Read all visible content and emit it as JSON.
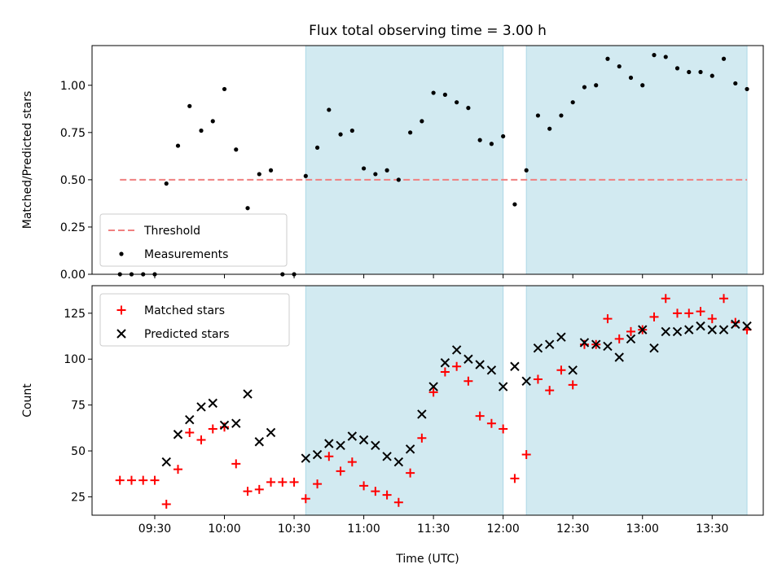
{
  "chart_data": [
    {
      "type": "scatter",
      "title": "Flux total observing time = 3.00 h",
      "xlabel": "",
      "ylabel": "Matched/Predicted stars",
      "xlim": [
        "09:03",
        "13:52"
      ],
      "ylim": [
        0,
        1.21
      ],
      "x_ticks": [
        "09:30",
        "10:00",
        "10:30",
        "11:00",
        "11:30",
        "12:00",
        "12:30",
        "13:00",
        "13:30"
      ],
      "x_tick_labels_shown": false,
      "y_ticks": [
        "0.00",
        "0.25",
        "0.50",
        "0.75",
        "1.00"
      ],
      "shaded_intervals": [
        [
          "10:35",
          "12:00"
        ],
        [
          "12:10",
          "13:45"
        ]
      ],
      "shade_color": "#add8e6",
      "legend": {
        "location": "lower-left",
        "entries": [
          {
            "label": "Threshold",
            "style": "dashed-line",
            "color": "#f08080"
          },
          {
            "label": "Measurements",
            "style": "dot",
            "color": "#000000"
          }
        ]
      },
      "series": [
        {
          "name": "Threshold",
          "kind": "hline",
          "y": 0.5,
          "x_range": [
            "09:15",
            "13:45"
          ],
          "color": "#f08080"
        },
        {
          "name": "Measurements",
          "kind": "points",
          "color": "#000000",
          "points": [
            [
              "09:15",
              0.0
            ],
            [
              "09:20",
              0.0
            ],
            [
              "09:25",
              0.0
            ],
            [
              "09:30",
              0.0
            ],
            [
              "09:35",
              0.48
            ],
            [
              "09:40",
              0.68
            ],
            [
              "09:45",
              0.89
            ],
            [
              "09:50",
              0.76
            ],
            [
              "09:55",
              0.81
            ],
            [
              "10:00",
              0.98
            ],
            [
              "10:05",
              0.66
            ],
            [
              "10:10",
              0.35
            ],
            [
              "10:15",
              0.53
            ],
            [
              "10:20",
              0.55
            ],
            [
              "10:25",
              0.0
            ],
            [
              "10:30",
              0.0
            ],
            [
              "10:35",
              0.52
            ],
            [
              "10:40",
              0.67
            ],
            [
              "10:45",
              0.87
            ],
            [
              "10:50",
              0.74
            ],
            [
              "10:55",
              0.76
            ],
            [
              "11:00",
              0.56
            ],
            [
              "11:05",
              0.53
            ],
            [
              "11:10",
              0.55
            ],
            [
              "11:15",
              0.5
            ],
            [
              "11:20",
              0.75
            ],
            [
              "11:25",
              0.81
            ],
            [
              "11:30",
              0.96
            ],
            [
              "11:35",
              0.95
            ],
            [
              "11:40",
              0.91
            ],
            [
              "11:45",
              0.88
            ],
            [
              "11:50",
              0.71
            ],
            [
              "11:55",
              0.69
            ],
            [
              "12:00",
              0.73
            ],
            [
              "12:05",
              0.37
            ],
            [
              "12:10",
              0.55
            ],
            [
              "12:15",
              0.84
            ],
            [
              "12:20",
              0.77
            ],
            [
              "12:25",
              0.84
            ],
            [
              "12:30",
              0.91
            ],
            [
              "12:35",
              0.99
            ],
            [
              "12:40",
              1.0
            ],
            [
              "12:45",
              1.14
            ],
            [
              "12:50",
              1.1
            ],
            [
              "12:55",
              1.04
            ],
            [
              "13:00",
              1.0
            ],
            [
              "13:05",
              1.16
            ],
            [
              "13:10",
              1.15
            ],
            [
              "13:15",
              1.09
            ],
            [
              "13:20",
              1.07
            ],
            [
              "13:25",
              1.07
            ],
            [
              "13:30",
              1.05
            ],
            [
              "13:35",
              1.14
            ],
            [
              "13:40",
              1.01
            ],
            [
              "13:45",
              0.98
            ]
          ]
        }
      ]
    },
    {
      "type": "scatter",
      "title": "",
      "xlabel": "Time (UTC)",
      "ylabel": "Count",
      "xlim": [
        "09:03",
        "13:52"
      ],
      "ylim": [
        15,
        140
      ],
      "x_ticks": [
        "09:30",
        "10:00",
        "10:30",
        "11:00",
        "11:30",
        "12:00",
        "12:30",
        "13:00",
        "13:30"
      ],
      "y_ticks": [
        "25",
        "50",
        "75",
        "100",
        "125"
      ],
      "shaded_intervals": [
        [
          "10:35",
          "12:00"
        ],
        [
          "12:10",
          "13:45"
        ]
      ],
      "shade_color": "#add8e6",
      "legend": {
        "location": "top-left",
        "entries": [
          {
            "label": "Matched stars",
            "style": "plus",
            "color": "#ff0000"
          },
          {
            "label": "Predicted stars",
            "style": "x",
            "color": "#000000"
          }
        ]
      },
      "series": [
        {
          "name": "Matched stars",
          "marker": "plus",
          "color": "#ff0000",
          "points": [
            [
              "09:15",
              34
            ],
            [
              "09:20",
              34
            ],
            [
              "09:25",
              34
            ],
            [
              "09:30",
              34
            ],
            [
              "09:35",
              21
            ],
            [
              "09:40",
              40
            ],
            [
              "09:45",
              60
            ],
            [
              "09:50",
              56
            ],
            [
              "09:55",
              62
            ],
            [
              "10:00",
              63
            ],
            [
              "10:05",
              43
            ],
            [
              "10:10",
              28
            ],
            [
              "10:15",
              29
            ],
            [
              "10:20",
              33
            ],
            [
              "10:25",
              33
            ],
            [
              "10:30",
              33
            ],
            [
              "10:35",
              24
            ],
            [
              "10:40",
              32
            ],
            [
              "10:45",
              47
            ],
            [
              "10:50",
              39
            ],
            [
              "10:55",
              44
            ],
            [
              "11:00",
              31
            ],
            [
              "11:05",
              28
            ],
            [
              "11:10",
              26
            ],
            [
              "11:15",
              22
            ],
            [
              "11:20",
              38
            ],
            [
              "11:25",
              57
            ],
            [
              "11:30",
              82
            ],
            [
              "11:35",
              93
            ],
            [
              "11:40",
              96
            ],
            [
              "11:45",
              88
            ],
            [
              "11:50",
              69
            ],
            [
              "11:55",
              65
            ],
            [
              "12:00",
              62
            ],
            [
              "12:05",
              35
            ],
            [
              "12:10",
              48
            ],
            [
              "12:15",
              89
            ],
            [
              "12:20",
              83
            ],
            [
              "12:25",
              94
            ],
            [
              "12:30",
              86
            ],
            [
              "12:35",
              108
            ],
            [
              "12:40",
              108
            ],
            [
              "12:45",
              122
            ],
            [
              "12:50",
              111
            ],
            [
              "12:55",
              115
            ],
            [
              "13:00",
              116
            ],
            [
              "13:05",
              123
            ],
            [
              "13:10",
              133
            ],
            [
              "13:15",
              125
            ],
            [
              "13:20",
              125
            ],
            [
              "13:25",
              126
            ],
            [
              "13:30",
              122
            ],
            [
              "13:35",
              133
            ],
            [
              "13:40",
              120
            ],
            [
              "13:45",
              116
            ]
          ]
        },
        {
          "name": "Predicted stars",
          "marker": "x",
          "color": "#000000",
          "points": [
            [
              "09:35",
              44
            ],
            [
              "09:40",
              59
            ],
            [
              "09:45",
              67
            ],
            [
              "09:50",
              74
            ],
            [
              "09:55",
              76
            ],
            [
              "10:00",
              64
            ],
            [
              "10:05",
              65
            ],
            [
              "10:10",
              81
            ],
            [
              "10:15",
              55
            ],
            [
              "10:20",
              60
            ],
            [
              "10:35",
              46
            ],
            [
              "10:40",
              48
            ],
            [
              "10:45",
              54
            ],
            [
              "10:50",
              53
            ],
            [
              "10:55",
              58
            ],
            [
              "11:00",
              56
            ],
            [
              "11:05",
              53
            ],
            [
              "11:10",
              47
            ],
            [
              "11:15",
              44
            ],
            [
              "11:20",
              51
            ],
            [
              "11:25",
              70
            ],
            [
              "11:30",
              85
            ],
            [
              "11:35",
              98
            ],
            [
              "11:40",
              105
            ],
            [
              "11:45",
              100
            ],
            [
              "11:50",
              97
            ],
            [
              "11:55",
              94
            ],
            [
              "12:00",
              85
            ],
            [
              "12:05",
              96
            ],
            [
              "12:10",
              88
            ],
            [
              "12:15",
              106
            ],
            [
              "12:20",
              108
            ],
            [
              "12:25",
              112
            ],
            [
              "12:30",
              94
            ],
            [
              "12:35",
              109
            ],
            [
              "12:40",
              108
            ],
            [
              "12:45",
              107
            ],
            [
              "12:50",
              101
            ],
            [
              "12:55",
              111
            ],
            [
              "13:00",
              116
            ],
            [
              "13:05",
              106
            ],
            [
              "13:10",
              115
            ],
            [
              "13:15",
              115
            ],
            [
              "13:20",
              116
            ],
            [
              "13:25",
              118
            ],
            [
              "13:30",
              116
            ],
            [
              "13:35",
              116
            ],
            [
              "13:40",
              119
            ],
            [
              "13:45",
              118
            ]
          ]
        }
      ]
    }
  ]
}
